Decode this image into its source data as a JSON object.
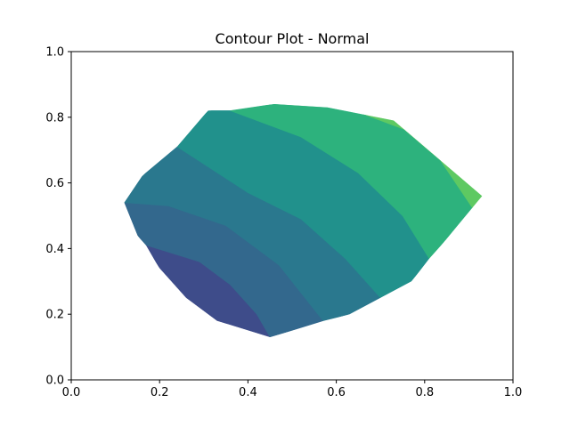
{
  "chart_data": {
    "type": "contour",
    "title": "Contour Plot - Normal",
    "xlabel": "",
    "ylabel": "",
    "xlim": [
      0.0,
      1.0
    ],
    "ylim": [
      0.0,
      1.0
    ],
    "x_ticks": [
      0.0,
      0.2,
      0.4,
      0.6,
      0.8,
      1.0
    ],
    "y_ticks": [
      0.0,
      0.2,
      0.4,
      0.6,
      0.8,
      1.0
    ],
    "x_tick_labels": [
      "0.0",
      "0.2",
      "0.4",
      "0.6",
      "0.8",
      "1.0"
    ],
    "y_tick_labels": [
      "0.0",
      "0.2",
      "0.4",
      "0.6",
      "0.8",
      "1.0"
    ],
    "grid": false,
    "legend": "none",
    "colormap": "viridis",
    "region_boundary": [
      [
        0.45,
        0.13
      ],
      [
        0.63,
        0.2
      ],
      [
        0.77,
        0.3
      ],
      [
        0.93,
        0.56
      ],
      [
        0.73,
        0.79
      ],
      [
        0.58,
        0.83
      ],
      [
        0.46,
        0.84
      ],
      [
        0.31,
        0.82
      ],
      [
        0.16,
        0.62
      ],
      [
        0.12,
        0.54
      ],
      [
        0.15,
        0.44
      ],
      [
        0.2,
        0.34
      ],
      [
        0.26,
        0.25
      ],
      [
        0.33,
        0.18
      ]
    ],
    "bands": [
      {
        "level": 1,
        "color": "#3e4c8a",
        "points": [
          [
            0.45,
            0.13
          ],
          [
            0.33,
            0.18
          ],
          [
            0.26,
            0.25
          ],
          [
            0.2,
            0.34
          ],
          [
            0.17,
            0.41
          ],
          [
            0.29,
            0.36
          ],
          [
            0.36,
            0.29
          ],
          [
            0.42,
            0.2
          ]
        ]
      },
      {
        "level": 2,
        "color": "#33688d",
        "points": [
          [
            0.17,
            0.41
          ],
          [
            0.29,
            0.36
          ],
          [
            0.36,
            0.29
          ],
          [
            0.42,
            0.2
          ],
          [
            0.45,
            0.13
          ],
          [
            0.57,
            0.18
          ],
          [
            0.47,
            0.35
          ],
          [
            0.35,
            0.47
          ],
          [
            0.22,
            0.53
          ],
          [
            0.12,
            0.54
          ],
          [
            0.15,
            0.44
          ]
        ]
      },
      {
        "level": 3,
        "color": "#2a788e",
        "points": [
          [
            0.12,
            0.54
          ],
          [
            0.22,
            0.53
          ],
          [
            0.35,
            0.47
          ],
          [
            0.47,
            0.35
          ],
          [
            0.57,
            0.18
          ],
          [
            0.63,
            0.2
          ],
          [
            0.7,
            0.25
          ],
          [
            0.62,
            0.37
          ],
          [
            0.52,
            0.49
          ],
          [
            0.4,
            0.57
          ],
          [
            0.24,
            0.71
          ],
          [
            0.16,
            0.62
          ]
        ]
      },
      {
        "level": 4,
        "color": "#21918c",
        "points": [
          [
            0.24,
            0.71
          ],
          [
            0.4,
            0.57
          ],
          [
            0.52,
            0.49
          ],
          [
            0.62,
            0.37
          ],
          [
            0.7,
            0.25
          ],
          [
            0.77,
            0.3
          ],
          [
            0.81,
            0.37
          ],
          [
            0.75,
            0.5
          ],
          [
            0.65,
            0.63
          ],
          [
            0.52,
            0.74
          ],
          [
            0.36,
            0.82
          ],
          [
            0.31,
            0.82
          ]
        ]
      },
      {
        "level": 5,
        "color": "#2db27d",
        "points": [
          [
            0.36,
            0.82
          ],
          [
            0.52,
            0.74
          ],
          [
            0.65,
            0.63
          ],
          [
            0.75,
            0.5
          ],
          [
            0.81,
            0.37
          ],
          [
            0.91,
            0.52
          ],
          [
            0.8,
            0.74
          ],
          [
            0.66,
            0.81
          ],
          [
            0.58,
            0.83
          ],
          [
            0.46,
            0.84
          ]
        ]
      },
      {
        "level": 6,
        "color": "#5ec962",
        "points": [
          [
            0.66,
            0.81
          ],
          [
            0.73,
            0.79
          ],
          [
            0.93,
            0.56
          ],
          [
            0.91,
            0.52
          ],
          [
            0.8,
            0.74
          ]
        ]
      }
    ]
  }
}
